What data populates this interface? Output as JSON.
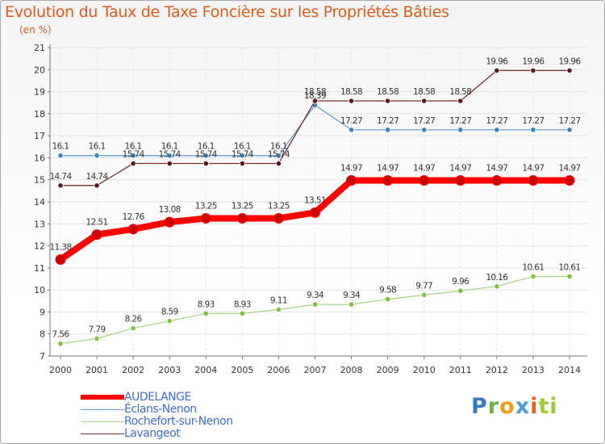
{
  "chart_data": {
    "type": "line",
    "title": "Evolution du Taux de Taxe Foncière sur les Propriétés Bâties",
    "ylabel": "(en %)",
    "xlabel": "",
    "x": [
      "2000",
      "2001",
      "2002",
      "2003",
      "2004",
      "2005",
      "2006",
      "2007",
      "2008",
      "2009",
      "2010",
      "2011",
      "2012",
      "2013",
      "2014"
    ],
    "ylim": [
      7,
      21
    ],
    "yticks": [
      "7",
      "8",
      "9",
      "10",
      "11",
      "12",
      "13",
      "14",
      "15",
      "16",
      "17",
      "18",
      "19",
      "20",
      "21"
    ],
    "grid": true,
    "series": [
      {
        "name": "AUDELANGE",
        "color": "#ff0000",
        "marker": "#cc0000",
        "emphasis": true,
        "values": [
          11.38,
          12.51,
          12.76,
          13.08,
          13.25,
          13.25,
          13.25,
          13.51,
          14.97,
          14.97,
          14.97,
          14.97,
          14.97,
          14.97,
          14.97
        ],
        "labels": [
          "11.38",
          "12.51",
          "12.76",
          "13.08",
          "13.25",
          "13.25",
          "13.25",
          "13.51",
          "14.97",
          "14.97",
          "14.97",
          "14.97",
          "14.97",
          "14.97",
          "14.97"
        ]
      },
      {
        "name": "Éclans-Nenon",
        "color": "#6a9fd4",
        "marker": "#3b83c8",
        "emphasis": false,
        "values": [
          16.1,
          16.1,
          16.1,
          16.1,
          16.1,
          16.1,
          16.1,
          18.39,
          17.27,
          17.27,
          17.27,
          17.27,
          17.27,
          17.27,
          17.27
        ],
        "labels": [
          "16.1",
          "16.1",
          "16.1",
          "16.1",
          "16.1",
          "16.1",
          "16.1",
          "18.39",
          "17.27",
          "17.27",
          "17.27",
          "17.27",
          "17.27",
          "17.27",
          "17.27"
        ]
      },
      {
        "name": "Rochefort-sur-Nenon",
        "color": "#a8d68a",
        "marker": "#7cc13e",
        "emphasis": false,
        "values": [
          7.56,
          7.79,
          8.26,
          8.59,
          8.93,
          8.93,
          9.11,
          9.34,
          9.34,
          9.58,
          9.77,
          9.96,
          10.16,
          10.61,
          10.61
        ],
        "labels": [
          "7.56",
          "7.79",
          "8.26",
          "8.59",
          "8.93",
          "8.93",
          "9.11",
          "9.34",
          "9.34",
          "9.58",
          "9.77",
          "9.96",
          "10.16",
          "10.61",
          "10.61"
        ]
      },
      {
        "name": "Lavangeot",
        "color": "#7a2f2f",
        "marker": "#5e1818",
        "emphasis": false,
        "values": [
          14.74,
          14.74,
          15.74,
          15.74,
          15.74,
          15.74,
          15.74,
          18.58,
          18.58,
          18.58,
          18.58,
          18.58,
          19.96,
          19.96,
          19.96
        ],
        "labels": [
          "14.74",
          "14.74",
          "15.74",
          "15.74",
          "15.74",
          "15.74",
          "15.74",
          "18.58",
          "18.58",
          "18.58",
          "18.58",
          "18.58",
          "19.96",
          "19.96",
          "19.96"
        ]
      }
    ],
    "legend": {
      "placement": "bottom-left",
      "entries": [
        "AUDELANGE",
        "Éclans-Nenon",
        "Rochefort-sur-Nenon",
        "Lavangeot"
      ]
    }
  },
  "brand": {
    "parts": [
      "P",
      "r",
      "o",
      "x",
      "i",
      "ti"
    ]
  }
}
